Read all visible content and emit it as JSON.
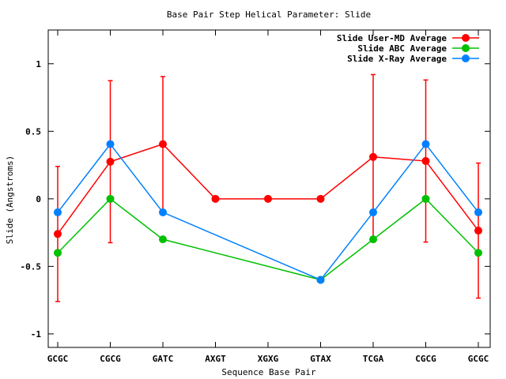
{
  "chart_data": {
    "type": "line",
    "title": "Base Pair Step Helical Parameter: Slide",
    "xlabel": "Sequence Base Pair",
    "ylabel": "Slide (Angstroms)",
    "categories": [
      "GCGC",
      "CGCG",
      "GATC",
      "AXGT",
      "XGXG",
      "GTAX",
      "TCGA",
      "CGCG",
      "GCGC"
    ],
    "ylim": [
      -1.1,
      1.25
    ],
    "yticks": [
      1,
      0.5,
      0,
      -0.5,
      -1
    ],
    "ytick_labels": [
      "1",
      "0.5",
      "0",
      "-0.5",
      "-1"
    ],
    "grid": false,
    "legend_position": "top-right",
    "series": [
      {
        "name": "Slide User-MD Average",
        "color": "#ff0000",
        "points": [
          {
            "x": 0,
            "y": -0.26,
            "err": 0.5
          },
          {
            "x": 1,
            "y": 0.275,
            "err": 0.6
          },
          {
            "x": 2,
            "y": 0.405,
            "err": 0.5
          },
          {
            "x": 3,
            "y": 0.0
          },
          {
            "x": 4,
            "y": 0.0
          },
          {
            "x": 5,
            "y": 0.0
          },
          {
            "x": 6,
            "y": 0.31,
            "err": 0.61
          },
          {
            "x": 7,
            "y": 0.28,
            "err": 0.6
          },
          {
            "x": 8,
            "y": -0.235,
            "err": 0.5
          }
        ]
      },
      {
        "name": "Slide ABC Average",
        "color": "#00c000",
        "points": [
          {
            "x": 0,
            "y": -0.4
          },
          {
            "x": 1,
            "y": 0.0
          },
          {
            "x": 2,
            "y": -0.3
          },
          {
            "x": 5,
            "y": -0.6
          },
          {
            "x": 6,
            "y": -0.3
          },
          {
            "x": 7,
            "y": 0.0
          },
          {
            "x": 8,
            "y": -0.4
          }
        ]
      },
      {
        "name": "Slide X-Ray Average",
        "color": "#0080ff",
        "points": [
          {
            "x": 0,
            "y": -0.1
          },
          {
            "x": 1,
            "y": 0.405
          },
          {
            "x": 2,
            "y": -0.1
          },
          {
            "x": 5,
            "y": -0.6
          },
          {
            "x": 6,
            "y": -0.1
          },
          {
            "x": 7,
            "y": 0.405
          },
          {
            "x": 8,
            "y": -0.1
          }
        ]
      }
    ]
  }
}
